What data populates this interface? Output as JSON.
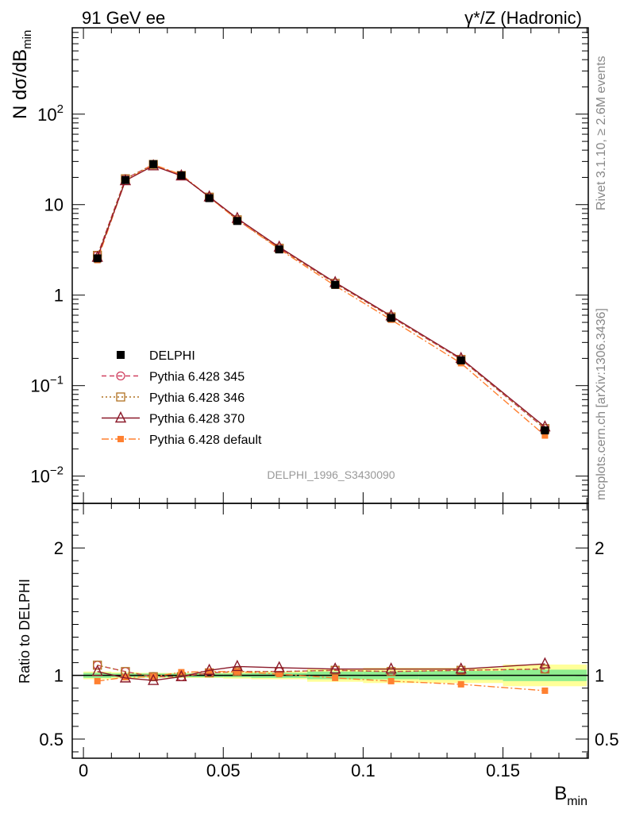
{
  "header": {
    "left": "91 GeV ee",
    "right": "γ*/Z (Hadronic)"
  },
  "side": {
    "rivet": "Rivet 3.1.10, ≥ 2.6M events",
    "mcplots": "mcplots.cern.ch [arXiv:1306.3436]"
  },
  "watermark": "DELPHI_1996_S3430090",
  "colors": {
    "data": "#000000",
    "p345": "#d04060",
    "p346": "#b07020",
    "p370": "#8b1a2a",
    "pdefault": "#ff8030",
    "band_inner": "#90ee90",
    "band_outer": "#ffff99"
  },
  "chart_data": [
    {
      "type": "line",
      "panel": "main",
      "ylabel_main": "N dσ/dB",
      "ylabel_sub": "min",
      "yscale": "log",
      "ylim": [
        0.005,
        900
      ],
      "xlim": [
        -0.004,
        0.1805
      ],
      "ytick_labels": [
        {
          "value": 0.01,
          "base": "10",
          "exp": "−2"
        },
        {
          "value": 0.1,
          "base": "10",
          "exp": "−1"
        },
        {
          "value": 1,
          "base": "1",
          "exp": ""
        },
        {
          "value": 10,
          "base": "10",
          "exp": ""
        },
        {
          "value": 100,
          "base": "10",
          "exp": "2"
        }
      ],
      "x": [
        0.005,
        0.015,
        0.025,
        0.035,
        0.045,
        0.055,
        0.07,
        0.09,
        0.11,
        0.135,
        0.165
      ],
      "series": [
        {
          "name": "DELPHI",
          "key": "data",
          "style": "data",
          "values": [
            2.55,
            18.7,
            28.0,
            21.0,
            11.8,
            6.6,
            3.2,
            1.3,
            0.56,
            0.19,
            0.032
          ]
        },
        {
          "name": "Pythia 6.428 345",
          "key": "p345",
          "style": "circle",
          "values": [
            2.75,
            19.3,
            27.8,
            21.0,
            12.1,
            6.8,
            3.3,
            1.35,
            0.575,
            0.195,
            0.0335
          ]
        },
        {
          "name": "Pythia 6.428 346",
          "key": "p346",
          "style": "square",
          "values": [
            2.75,
            19.3,
            27.8,
            21.0,
            12.1,
            6.8,
            3.3,
            1.35,
            0.575,
            0.195,
            0.0335
          ]
        },
        {
          "name": "Pythia 6.428 370",
          "key": "p370",
          "style": "triangle",
          "values": [
            2.62,
            18.4,
            26.9,
            20.8,
            12.2,
            7.05,
            3.4,
            1.38,
            0.59,
            0.2,
            0.035
          ]
        },
        {
          "name": "Pythia 6.428 default",
          "key": "pdefault",
          "style": "filledsquare",
          "values": [
            2.44,
            18.4,
            27.7,
            21.5,
            12.1,
            6.8,
            3.23,
            1.27,
            0.535,
            0.177,
            0.0281
          ]
        }
      ]
    },
    {
      "type": "line",
      "panel": "ratio",
      "ylabel": "Ratio to DELPHI",
      "ylim": [
        0.35,
        2.35
      ],
      "ytick_labels": [
        {
          "value": 0.5,
          "label": "0.5"
        },
        {
          "value": 1,
          "label": "1"
        },
        {
          "value": 2,
          "label": "2"
        }
      ],
      "xlabel_main": "B",
      "xlabel_sub": "min",
      "xtick_labels": [
        {
          "value": 0,
          "label": "0"
        },
        {
          "value": 0.05,
          "label": "0.05"
        },
        {
          "value": 0.1,
          "label": "0.1"
        },
        {
          "value": 0.15,
          "label": "0.15"
        }
      ],
      "bins": [
        [
          0,
          0.01
        ],
        [
          0.01,
          0.02
        ],
        [
          0.02,
          0.03
        ],
        [
          0.03,
          0.04
        ],
        [
          0.04,
          0.05
        ],
        [
          0.05,
          0.06
        ],
        [
          0.06,
          0.08
        ],
        [
          0.08,
          0.1
        ],
        [
          0.1,
          0.12
        ],
        [
          0.12,
          0.15
        ],
        [
          0.15,
          0.18
        ]
      ],
      "band_inner": [
        0.02,
        0.015,
        0.015,
        0.015,
        0.015,
        0.015,
        0.02,
        0.03,
        0.03,
        0.035,
        0.045
      ],
      "band_outer": [
        0.03,
        0.025,
        0.02,
        0.02,
        0.02,
        0.025,
        0.03,
        0.05,
        0.06,
        0.06,
        0.085
      ],
      "x": [
        0.005,
        0.015,
        0.025,
        0.035,
        0.045,
        0.055,
        0.07,
        0.09,
        0.11,
        0.135,
        0.165
      ],
      "series": [
        {
          "name": "Pythia 6.428 345",
          "key": "p345",
          "style": "circle",
          "values": [
            1.08,
            1.03,
            0.99,
            0.99,
            1.02,
            1.03,
            1.03,
            1.04,
            1.03,
            1.04,
            1.05
          ]
        },
        {
          "name": "Pythia 6.428 346",
          "key": "p346",
          "style": "square",
          "values": [
            1.08,
            1.03,
            0.99,
            0.99,
            1.02,
            1.03,
            1.03,
            1.04,
            1.03,
            1.04,
            1.05
          ]
        },
        {
          "name": "Pythia 6.428 370",
          "key": "p370",
          "style": "triangle",
          "values": [
            1.03,
            0.98,
            0.96,
            0.99,
            1.04,
            1.07,
            1.06,
            1.05,
            1.05,
            1.05,
            1.09
          ]
        },
        {
          "name": "Pythia 6.428 default",
          "key": "pdefault",
          "style": "filledsquare",
          "values": [
            0.955,
            0.985,
            0.99,
            1.025,
            1.03,
            1.03,
            1.01,
            0.98,
            0.955,
            0.93,
            0.88
          ]
        }
      ]
    }
  ]
}
